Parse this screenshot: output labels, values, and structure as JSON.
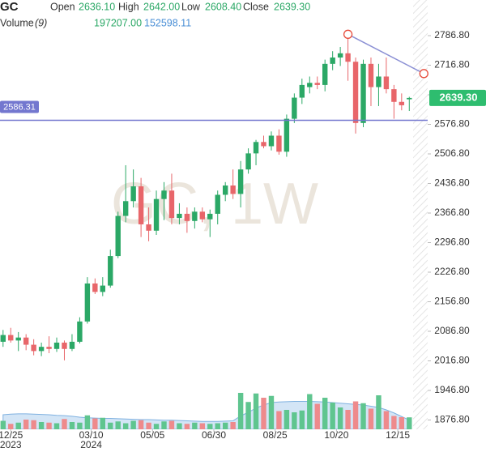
{
  "header": {
    "symbol": "GC",
    "fields": [
      {
        "name": "Open",
        "value": "2636.10"
      },
      {
        "name": "High",
        "value": "2642.00"
      },
      {
        "name": "Low",
        "value": "2608.40"
      },
      {
        "name": "Close",
        "value": "2639.30"
      }
    ],
    "volume": {
      "name": "Volume",
      "period": "(9)",
      "value": "197207.00",
      "ma": "152598.11"
    }
  },
  "chart_data": {
    "type": "candlestick",
    "watermark": "GC, 1W",
    "up_color": "#2ba866",
    "down_color": "#e8666a",
    "up_volume_color": "#5fc58f",
    "down_volume_color": "#ee8a8c",
    "volume_ma_color": "#9ec5ea",
    "open": [
      2062,
      2078,
      2065,
      2072,
      2055,
      2040,
      2050,
      2045,
      2060,
      2045,
      2062,
      2110,
      2200,
      2180,
      2195,
      2265,
      2360,
      2395,
      2430,
      2340,
      2325,
      2400,
      2420,
      2355,
      2365,
      2348,
      2370,
      2352,
      2365,
      2410,
      2432,
      2412,
      2470,
      2508,
      2535,
      2525,
      2550,
      2512,
      2590,
      2640,
      2665,
      2675,
      2670,
      2720,
      2735,
      2745,
      2725,
      2580,
      2720,
      2665,
      2690,
      2660,
      2630,
      2636.1
    ],
    "high": [
      2090,
      2095,
      2085,
      2080,
      2068,
      2060,
      2075,
      2072,
      2065,
      2080,
      2120,
      2215,
      2212,
      2215,
      2280,
      2370,
      2480,
      2470,
      2450,
      2380,
      2420,
      2440,
      2460,
      2390,
      2380,
      2380,
      2380,
      2375,
      2420,
      2440,
      2470,
      2490,
      2520,
      2540,
      2550,
      2560,
      2565,
      2600,
      2650,
      2685,
      2690,
      2690,
      2730,
      2750,
      2760,
      2790,
      2735,
      2730,
      2735,
      2720,
      2735,
      2670,
      2650,
      2642
    ],
    "low": [
      2050,
      2060,
      2040,
      2042,
      2030,
      2028,
      2035,
      2038,
      2018,
      2040,
      2058,
      2105,
      2175,
      2170,
      2190,
      2260,
      2345,
      2380,
      2310,
      2300,
      2315,
      2350,
      2340,
      2340,
      2320,
      2330,
      2345,
      2310,
      2340,
      2395,
      2400,
      2380,
      2460,
      2480,
      2520,
      2515,
      2505,
      2500,
      2580,
      2625,
      2650,
      2660,
      2655,
      2705,
      2715,
      2680,
      2555,
      2570,
      2620,
      2620,
      2650,
      2590,
      2610,
      2608.4
    ],
    "close": [
      2078,
      2065,
      2072,
      2055,
      2040,
      2050,
      2045,
      2060,
      2045,
      2062,
      2110,
      2200,
      2180,
      2195,
      2265,
      2360,
      2395,
      2430,
      2340,
      2325,
      2400,
      2420,
      2355,
      2365,
      2348,
      2370,
      2352,
      2365,
      2410,
      2432,
      2412,
      2470,
      2508,
      2535,
      2525,
      2550,
      2512,
      2590,
      2640,
      2670,
      2675,
      2670,
      2720,
      2735,
      2745,
      2725,
      2580,
      2720,
      2665,
      2690,
      2660,
      2630,
      2622,
      2639.3
    ],
    "volume": [
      140000,
      90000,
      110000,
      160000,
      150000,
      120000,
      110000,
      100000,
      170000,
      120000,
      110000,
      230000,
      180000,
      190000,
      110000,
      130000,
      100000,
      140000,
      150000,
      110000,
      90000,
      130000,
      140000,
      100000,
      90000,
      110000,
      100000,
      90000,
      100000,
      110000,
      120000,
      600000,
      450000,
      590000,
      520000,
      550000,
      300000,
      320000,
      280000,
      310000,
      580000,
      420000,
      520000,
      440000,
      360000,
      320000,
      460000,
      430000,
      340000,
      560000,
      300000,
      220000,
      200000,
      197207
    ],
    "volume_ma": [
      240000,
      250000,
      255000,
      255000,
      250000,
      245000,
      240000,
      230000,
      225000,
      215000,
      200000,
      190000,
      185000,
      180000,
      180000,
      175000,
      170000,
      165000,
      160000,
      160000,
      155000,
      150000,
      150000,
      145000,
      140000,
      135000,
      130000,
      130000,
      130000,
      135000,
      140000,
      220000,
      280000,
      350000,
      400000,
      440000,
      450000,
      455000,
      460000,
      460000,
      460000,
      455000,
      450000,
      440000,
      430000,
      420000,
      410000,
      400000,
      380000,
      360000,
      320000,
      270000,
      210000,
      152598.11
    ],
    "xlim": [
      -0.4,
      55.4
    ],
    "ylim": [
      1854.7,
      2871.2
    ],
    "yticks": [
      {
        "value": 2786.8,
        "label": "2786.80"
      },
      {
        "value": 2716.8,
        "label": "2716.80"
      },
      {
        "value": 2646.8,
        "label": "2646.80"
      },
      {
        "value": 2576.8,
        "label": "2576.80"
      },
      {
        "value": 2506.8,
        "label": "2506.80"
      },
      {
        "value": 2436.8,
        "label": "2436.80"
      },
      {
        "value": 2366.8,
        "label": "2366.80"
      },
      {
        "value": 2296.8,
        "label": "2296.80"
      },
      {
        "value": 2226.8,
        "label": "2226.80"
      },
      {
        "value": 2156.8,
        "label": "2156.80"
      },
      {
        "value": 2086.8,
        "label": "2086.80"
      },
      {
        "value": 2016.8,
        "label": "2016.80"
      },
      {
        "value": 1946.8,
        "label": "1946.80"
      },
      {
        "value": 1876.8,
        "label": "1876.80"
      }
    ],
    "xticks": [
      {
        "value": 1,
        "label": "12/25"
      },
      {
        "value": 11.5,
        "label": "03/10"
      },
      {
        "value": 19.5,
        "label": "05/05"
      },
      {
        "value": 27.5,
        "label": "06/30"
      },
      {
        "value": 35.5,
        "label": "08/25"
      },
      {
        "value": 43.5,
        "label": "10/20"
      },
      {
        "value": 51.5,
        "label": "12/15"
      }
    ],
    "year_ticks": [
      {
        "value": 1,
        "label": "2023"
      },
      {
        "value": 11.5,
        "label": "2024"
      }
    ],
    "last_price": {
      "value": 2639.3,
      "label": "2639.30",
      "color": "#2ebd6f"
    },
    "horizontal_line": {
      "value": 2586.31,
      "label": "2586.31",
      "color": "#7377cf"
    },
    "trend_line": {
      "x": [
        45,
        54.9
      ],
      "y": [
        2790,
        2697
      ],
      "color": "#8a8fd4",
      "handle_color": "#e74c3c"
    }
  }
}
